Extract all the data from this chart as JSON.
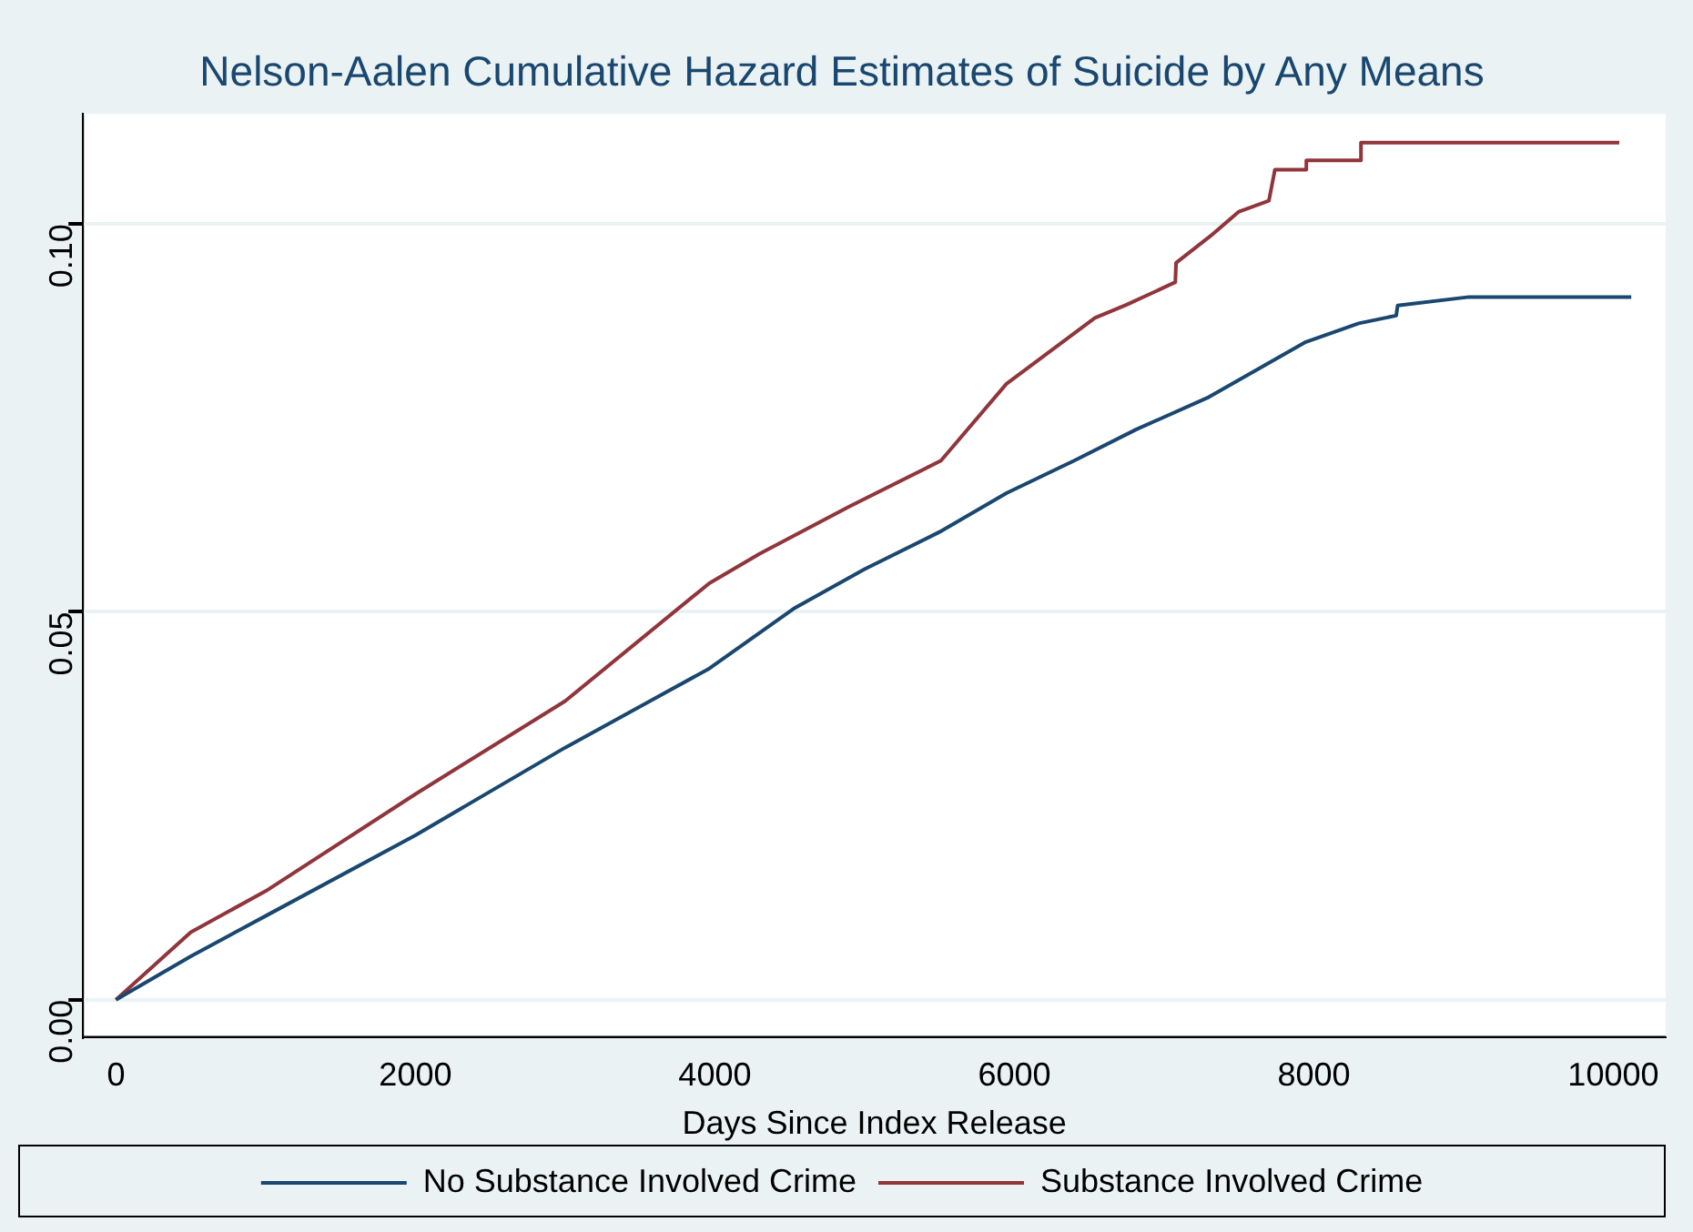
{
  "chart_data": {
    "type": "line",
    "title": "Nelson-Aalen Cumulative Hazard Estimates of Suicide by Any Means",
    "xlabel": "Days Since Index Release",
    "xlim": [
      -220,
      10350
    ],
    "xticks": [
      0,
      2000,
      4000,
      6000,
      8000,
      10000
    ],
    "ylim": [
      -0.0048,
      0.1142
    ],
    "yticks": [
      {
        "value": 0,
        "label": "0.00"
      },
      {
        "value": 0.05,
        "label": "0.05"
      },
      {
        "value": 0.1,
        "label": "0.10"
      }
    ],
    "grid": "y",
    "legend": "bottom",
    "marker": "none",
    "line_style": "solid",
    "series": [
      {
        "name": "No Substance Involved Crime",
        "color": "#1a476f",
        "x": [
          0,
          500,
          1000,
          2000,
          3000,
          3963,
          4525,
          5000,
          5500,
          5947,
          6400,
          6812,
          7300,
          7947,
          8300,
          8550,
          8560,
          9037,
          10120
        ],
        "values": [
          0,
          0.0056,
          0.0108,
          0.0212,
          0.0325,
          0.0427,
          0.0504,
          0.0555,
          0.0603,
          0.0653,
          0.0695,
          0.0735,
          0.0777,
          0.0848,
          0.0872,
          0.0882,
          0.0895,
          0.0906,
          0.0906
        ]
      },
      {
        "name": "Substance Involved Crime",
        "color": "#90353b",
        "x": [
          0,
          500,
          1000,
          2000,
          3000,
          3963,
          4300,
          4900,
          5510,
          5947,
          6538,
          6750,
          7075,
          7080,
          7325,
          7500,
          7700,
          7740,
          7946,
          7950,
          8312,
          8315,
          10040
        ],
        "values": [
          0,
          0.0087,
          0.014,
          0.0265,
          0.0385,
          0.0537,
          0.0575,
          0.0636,
          0.0695,
          0.0794,
          0.0879,
          0.0896,
          0.0925,
          0.095,
          0.0987,
          0.1016,
          0.103,
          0.107,
          0.107,
          0.1082,
          0.1082,
          0.1105,
          0.1105
        ]
      }
    ]
  }
}
